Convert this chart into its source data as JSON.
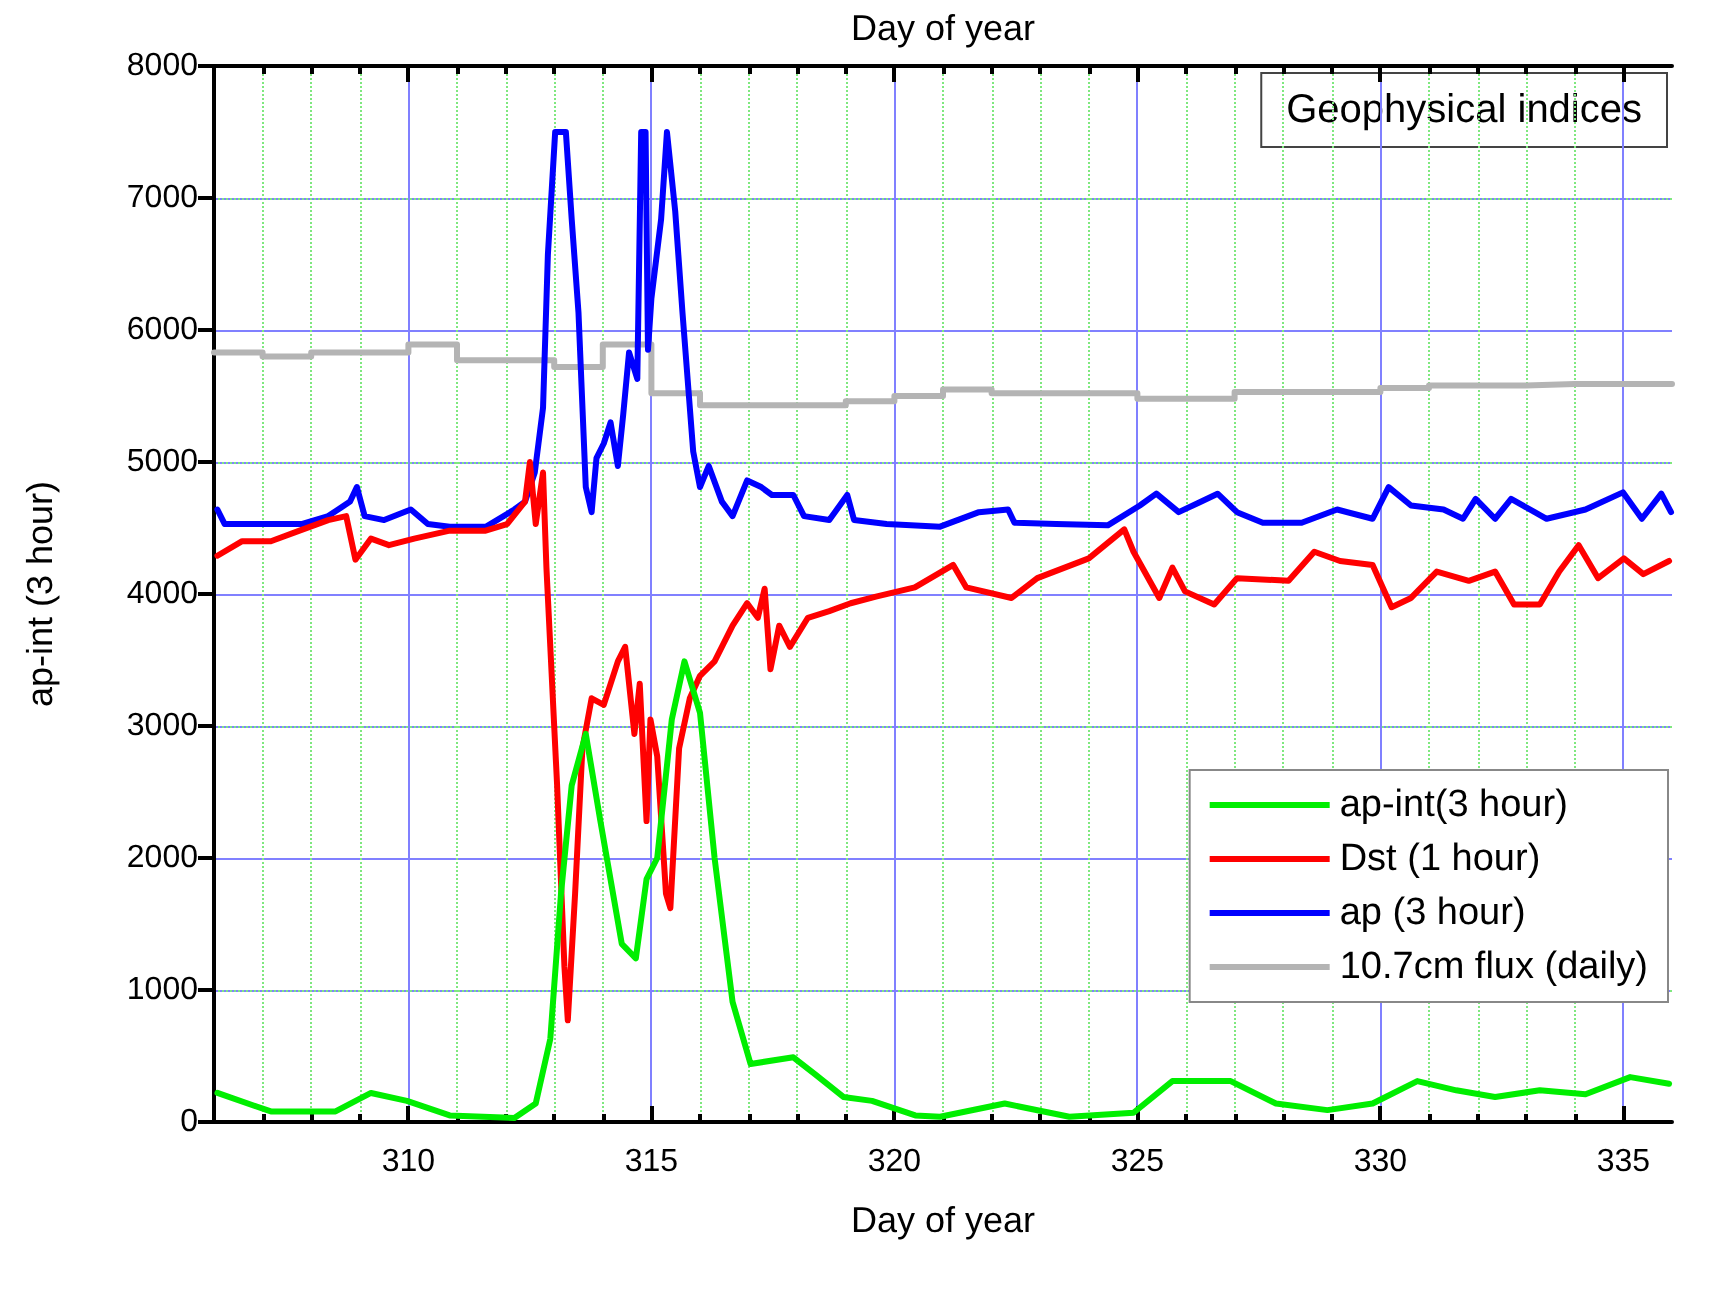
{
  "chart_data": {
    "type": "line",
    "xlabel": "Day of year",
    "x2label": "Day of year",
    "ylabel": "ap-int (3 hour)",
    "annotations": [
      "Geophysical indices"
    ],
    "xlim": [
      306,
      336
    ],
    "xticks": [
      310,
      315,
      320,
      325,
      330,
      335
    ],
    "ylim": [
      0,
      8000
    ],
    "yticks": [
      0,
      1000,
      2000,
      3000,
      4000,
      5000,
      6000,
      7000,
      8000
    ],
    "grid": true,
    "legend": "bottom right",
    "marker": "none",
    "line_style": "solid",
    "series": [
      {
        "name": "ap-int(3 hour)",
        "color": "#00ee00",
        "x": [
          306.07,
          307.17,
          308.5,
          309.23,
          309.97,
          310.85,
          312.18,
          312.62,
          312.92,
          313.14,
          313.36,
          313.65,
          313.95,
          314.39,
          314.68,
          314.9,
          315.12,
          315.42,
          315.68,
          316.0,
          316.3,
          316.67,
          317.04,
          317.92,
          318.37,
          318.95,
          319.54,
          320.43,
          320.94,
          322.27,
          323.6,
          324.92,
          325.72,
          326.92,
          327.85,
          328.91,
          329.84,
          330.76,
          331.56,
          332.36,
          333.28,
          334.22,
          335.14,
          335.94
        ],
        "values": [
          220,
          80,
          80,
          220,
          160,
          50,
          30,
          140,
          630,
          1730,
          2550,
          2940,
          2280,
          1350,
          1240,
          1840,
          2000,
          3050,
          3490,
          3100,
          2000,
          910,
          440,
          490,
          360,
          190,
          160,
          50,
          40,
          140,
          40,
          70,
          310,
          310,
          140,
          90,
          140,
          310,
          240,
          190,
          240,
          210,
          340,
          290
        ]
      },
      {
        "name": "Dst (1 hour)",
        "color": "#ff0000",
        "x": [
          306.07,
          306.58,
          307.17,
          307.76,
          308.35,
          308.72,
          308.91,
          309.23,
          309.6,
          310.12,
          310.85,
          311.59,
          312.03,
          312.4,
          312.5,
          312.62,
          312.77,
          312.84,
          312.92,
          313.06,
          313.21,
          313.28,
          313.43,
          313.58,
          313.77,
          314.02,
          314.31,
          314.46,
          314.65,
          314.76,
          314.9,
          314.98,
          315.12,
          315.3,
          315.39,
          315.57,
          315.79,
          316.0,
          316.3,
          316.67,
          316.97,
          317.19,
          317.33,
          317.45,
          317.63,
          317.85,
          318.22,
          318.66,
          319.1,
          319.62,
          320.42,
          321.21,
          321.48,
          322.41,
          322.94,
          324.0,
          324.73,
          324.92,
          325.45,
          325.72,
          325.98,
          326.58,
          327.05,
          328.11,
          328.64,
          329.17,
          329.84,
          330.23,
          330.63,
          331.16,
          331.82,
          332.36,
          332.75,
          333.28,
          333.68,
          334.08,
          334.48,
          335.01,
          335.41,
          335.94
        ],
        "values": [
          4290,
          4400,
          4400,
          4480,
          4560,
          4590,
          4260,
          4420,
          4370,
          4420,
          4480,
          4480,
          4530,
          4700,
          5000,
          4530,
          4920,
          4200,
          3600,
          2550,
          1180,
          770,
          1730,
          2830,
          3210,
          3160,
          3490,
          3600,
          2940,
          3320,
          2280,
          3050,
          2770,
          1730,
          1620,
          2830,
          3210,
          3380,
          3490,
          3760,
          3930,
          3820,
          4040,
          3430,
          3760,
          3600,
          3820,
          3870,
          3930,
          3980,
          4050,
          4220,
          4050,
          3970,
          4120,
          4270,
          4490,
          4320,
          3970,
          4200,
          4020,
          3920,
          4120,
          4100,
          4320,
          4250,
          4220,
          3900,
          3970,
          4170,
          4100,
          4170,
          3920,
          3920,
          4170,
          4370,
          4120,
          4270,
          4150,
          4250
        ]
      },
      {
        "name": "ap (3 hour)",
        "color": "#0000ff",
        "x": [
          306.07,
          306.22,
          306.9,
          307.8,
          308.35,
          308.8,
          308.94,
          309.1,
          309.5,
          310.05,
          310.4,
          310.85,
          311.6,
          312.18,
          312.4,
          312.6,
          312.77,
          312.87,
          313.02,
          313.24,
          313.36,
          313.5,
          313.65,
          313.77,
          313.87,
          314.02,
          314.16,
          314.31,
          314.42,
          314.54,
          314.71,
          314.79,
          314.88,
          314.93,
          315.0,
          315.2,
          315.32,
          315.49,
          315.64,
          315.86,
          316.0,
          316.18,
          316.45,
          316.67,
          316.97,
          317.26,
          317.48,
          317.92,
          318.14,
          318.66,
          319.03,
          319.17,
          319.84,
          320.94,
          321.74,
          322.34,
          322.47,
          323.33,
          324.39,
          325.05,
          325.39,
          325.85,
          326.25,
          326.65,
          327.05,
          327.58,
          328.38,
          329.11,
          329.84,
          330.17,
          330.63,
          331.3,
          331.7,
          331.96,
          332.36,
          332.69,
          333.42,
          334.22,
          334.99,
          335.38,
          335.78,
          335.98
        ],
        "values": [
          4640,
          4530,
          4530,
          4530,
          4590,
          4700,
          4810,
          4590,
          4560,
          4640,
          4530,
          4510,
          4510,
          4640,
          4700,
          4920,
          5410,
          6570,
          7500,
          7500,
          6840,
          6130,
          4810,
          4620,
          5030,
          5140,
          5300,
          4970,
          5360,
          5830,
          5630,
          7500,
          7500,
          5850,
          6240,
          6840,
          7500,
          6900,
          6130,
          5080,
          4810,
          4970,
          4700,
          4590,
          4860,
          4810,
          4750,
          4750,
          4590,
          4560,
          4750,
          4560,
          4530,
          4510,
          4620,
          4640,
          4540,
          4530,
          4520,
          4670,
          4760,
          4620,
          4690,
          4760,
          4620,
          4540,
          4540,
          4640,
          4570,
          4810,
          4670,
          4640,
          4570,
          4720,
          4570,
          4720,
          4570,
          4640,
          4770,
          4570,
          4760,
          4620
        ]
      },
      {
        "name": "10.7cm flux (daily)",
        "color": "#b4b4b4",
        "type": "step",
        "x": [
          306,
          307,
          308,
          309,
          310,
          311,
          312,
          313,
          314,
          315,
          316,
          317,
          318,
          319,
          320,
          321,
          322,
          323,
          324,
          325,
          326,
          327,
          328,
          329,
          330,
          331,
          332,
          333,
          334,
          335,
          336
        ],
        "values": [
          5830,
          5800,
          5830,
          5830,
          5890,
          5770,
          5770,
          5720,
          5890,
          5520,
          5430,
          5430,
          5430,
          5460,
          5500,
          5550,
          5520,
          5520,
          5520,
          5480,
          5480,
          5530,
          5530,
          5530,
          5560,
          5580,
          5580,
          5590,
          5590,
          5590,
          5590
        ]
      }
    ]
  }
}
